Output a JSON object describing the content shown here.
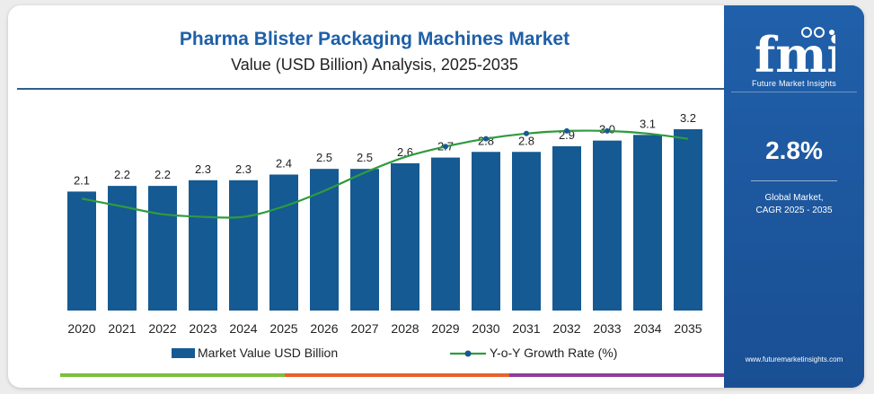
{
  "header": {
    "title": "Pharma Blister Packaging Machines Market",
    "subtitle": "Value (USD Billion) Analysis, 2025-2035"
  },
  "sidebar": {
    "logo_text": "Future Market Insights",
    "cagr_value": "2.8%",
    "cagr_label_line1": "Global Market,",
    "cagr_label_line2": "CAGR 2025 - 2035",
    "website": "www.futuremarketinsights.com"
  },
  "colors": {
    "bar": "#155a92",
    "line": "#2e9b3f",
    "title": "#1e5fa8",
    "sidebar": "#1e57a0",
    "bottom_segments": [
      "#7cbf3f",
      "#e8622c",
      "#8e3c9b"
    ]
  },
  "chart_data": {
    "type": "bar",
    "categories": [
      "2020",
      "2021",
      "2022",
      "2023",
      "2024",
      "2025",
      "2026",
      "2027",
      "2028",
      "2029",
      "2030",
      "2031",
      "2032",
      "2033",
      "2034",
      "2035"
    ],
    "series": [
      {
        "name": "Market Value USD Billion",
        "type": "bar",
        "values": [
          2.1,
          2.2,
          2.2,
          2.3,
          2.3,
          2.4,
          2.5,
          2.5,
          2.6,
          2.7,
          2.8,
          2.8,
          2.9,
          3.0,
          3.1,
          3.2
        ],
        "labels": [
          "2.1",
          "2.2",
          "2.2",
          "2.3",
          "2.3",
          "2.4",
          "2.5",
          "2.5",
          "2.6",
          "2.7",
          "2.8",
          "2.8",
          "2.9",
          "3.0",
          "3.1",
          "3.2"
        ]
      },
      {
        "name": "Y-o-Y Growth Rate (%)",
        "type": "line",
        "values": [
          4.3,
          4.0,
          3.7,
          3.6,
          3.6,
          4.0,
          4.6,
          5.3,
          5.9,
          6.3,
          6.6,
          6.8,
          6.9,
          6.9,
          6.8,
          6.6
        ]
      }
    ],
    "ylim": [
      0,
      3.5
    ],
    "y2lim": [
      0,
      8
    ],
    "legend_position": "bottom",
    "grid": false
  }
}
